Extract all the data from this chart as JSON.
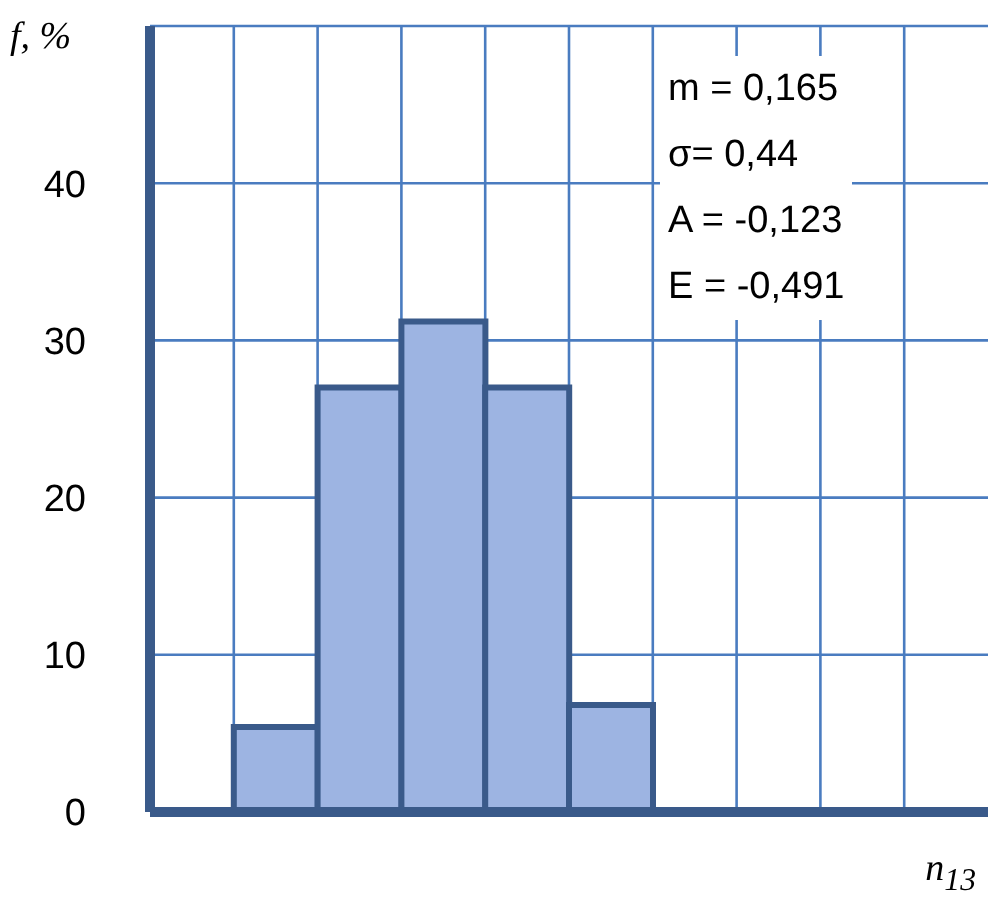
{
  "chart_data": {
    "type": "bar",
    "categories": [
      null,
      null,
      null,
      null,
      null,
      null,
      null,
      null,
      null,
      null
    ],
    "values": [
      null,
      5.4,
      27,
      31.2,
      27,
      6.8,
      null,
      null,
      null,
      null
    ],
    "color": "#9db4e2",
    "ylabel": "f, %",
    "xlabel": "n$_{13}$",
    "ylim": [
      0,
      50
    ],
    "yticks": [
      0,
      10,
      20,
      30,
      40,
      {
        "value": 50,
        "label": null
      }
    ],
    "grid": true,
    "annotations": [
      "m = 0,165",
      "σ= 0,44",
      "A = -0,123",
      "E = -0,491"
    ]
  }
}
